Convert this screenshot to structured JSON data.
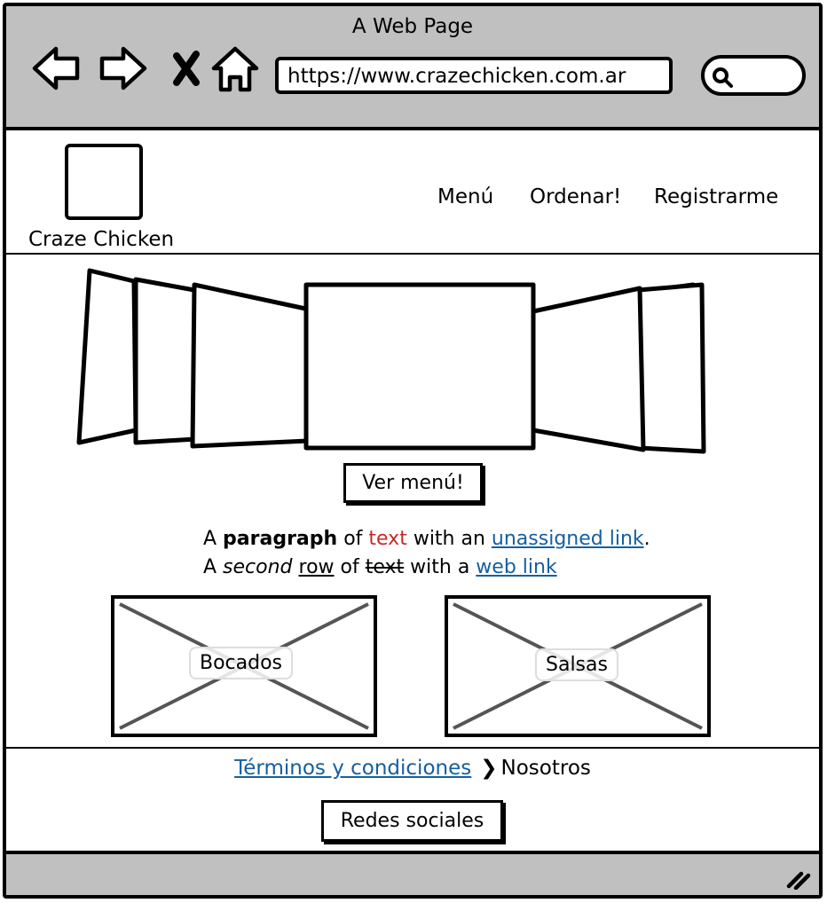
{
  "window": {
    "title": "A Web Page"
  },
  "browser": {
    "url": "https://www.crazechicken.com.ar",
    "icons": [
      "back-arrow-icon",
      "forward-arrow-icon",
      "close-x-icon",
      "home-icon",
      "search-icon"
    ]
  },
  "header": {
    "logo_label": "Craze Chicken",
    "nav": [
      "Menú",
      "Ordenar!",
      "Registrarme"
    ]
  },
  "hero": {
    "button_label": "Ver menú!"
  },
  "paragraph": {
    "line1": {
      "a": "A ",
      "bold": "paragraph",
      "b": " of ",
      "red": "text",
      "c": " with an ",
      "link": "unassigned link",
      "d": "."
    },
    "line2": {
      "a": "A ",
      "italic": "second",
      "b": " ",
      "underline": "row",
      "c": " of ",
      "strike": "text",
      "d": " with a ",
      "link": "web link"
    }
  },
  "cards": [
    "Bocados",
    "Salsas"
  ],
  "footer": {
    "link": "Términos y condiciones",
    "separator": "❯",
    "current": "Nosotros",
    "button_label": "Redes sociales"
  },
  "colors": {
    "chrome": "#c0c0c0",
    "link": "#155fa0",
    "red_text": "#c62828"
  }
}
